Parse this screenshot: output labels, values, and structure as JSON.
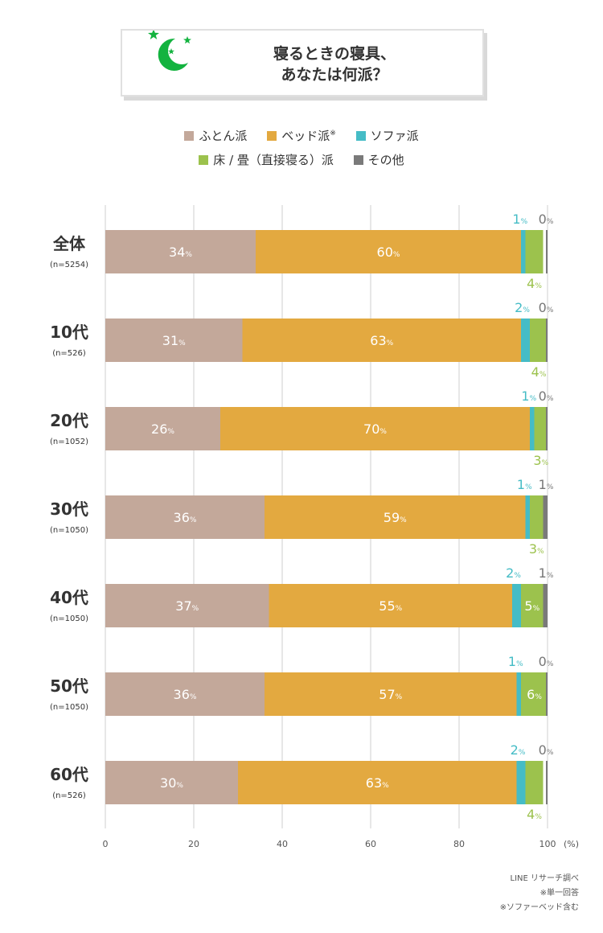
{
  "title": {
    "line1": "寝るときの寝具、",
    "line2": "あなたは何派？"
  },
  "colors": {
    "futon": "#c3a89a",
    "bed": "#e3a940",
    "sofa": "#45bcc6",
    "floor": "#9cc24d",
    "other": "#7a7a7a",
    "grid": "#cfcfcf",
    "icon": "#13b33f"
  },
  "legend": {
    "futon": "ふとん派",
    "bed": "ベッド派",
    "bed_mark": "※",
    "sofa": "ソファ派",
    "floor": "床 / 畳（直接寝る）派",
    "other": "その他"
  },
  "chart_data": {
    "type": "bar",
    "orientation": "horizontal",
    "stacked": true,
    "xlim": [
      0,
      100
    ],
    "xticks": [
      "0",
      "20",
      "40",
      "60",
      "80",
      "100"
    ],
    "xunit": "(%)",
    "unit_suffix": "%",
    "categories": [
      {
        "label": "全体",
        "n": "(n=5254)"
      },
      {
        "label": "10代",
        "n": "(n=526)"
      },
      {
        "label": "20代",
        "n": "(n=1052)"
      },
      {
        "label": "30代",
        "n": "(n=1050)"
      },
      {
        "label": "40代",
        "n": "(n=1050)"
      },
      {
        "label": "50代",
        "n": "(n=1050)"
      },
      {
        "label": "60代",
        "n": "(n=526)"
      }
    ],
    "series": [
      {
        "name": "ふとん派",
        "key": "futon",
        "values": [
          34,
          31,
          26,
          36,
          37,
          36,
          30
        ]
      },
      {
        "name": "ベッド派",
        "key": "bed",
        "values": [
          60,
          63,
          70,
          59,
          55,
          57,
          63
        ]
      },
      {
        "name": "ソファ派",
        "key": "sofa",
        "values": [
          1,
          2,
          1,
          1,
          2,
          1,
          2
        ]
      },
      {
        "name": "床 / 畳（直接寝る）派",
        "key": "floor",
        "values": [
          4,
          4,
          3,
          3,
          5,
          6,
          4
        ]
      },
      {
        "name": "その他",
        "key": "other",
        "values": [
          0,
          0,
          0,
          1,
          1,
          0,
          0
        ]
      }
    ],
    "floor_label_inside": [
      false,
      false,
      false,
      false,
      true,
      true,
      false
    ]
  },
  "source": {
    "line1": "LINE リサーチ調べ",
    "line2": "※単一回答",
    "line3": "※ソファーベッド含む"
  }
}
